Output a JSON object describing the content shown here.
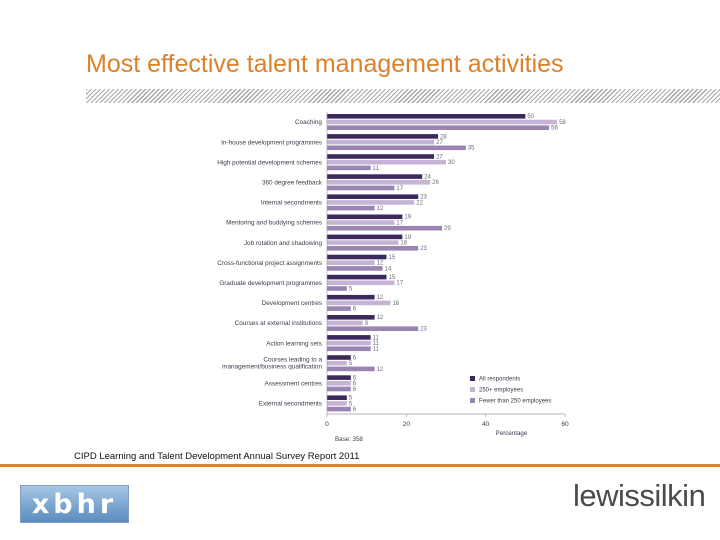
{
  "slide": {
    "title": "Most effective talent management activities",
    "source": "CIPD Learning and Talent Development Annual Survey Report 2011"
  },
  "logos": {
    "left": "xbhr",
    "right": "lewissilkin"
  },
  "colors": {
    "title": "#d9822b",
    "rule": "#d9822b",
    "series_all": "#3d2a5c",
    "series_large": "#c6b4d6",
    "series_small": "#9a84b2"
  },
  "chart_data": {
    "type": "bar",
    "orientation": "horizontal",
    "categories": [
      "Coaching",
      "In-house development programmes",
      "High potential development schemes",
      "360 degree feedback",
      "Internal secondments",
      "Mentoring and buddying schemes",
      "Job rotation and shadowing",
      "Cross-functional project assignments",
      "Graduate development programmes",
      "Development centres",
      "Courses at external institutions",
      "Action learning sets",
      "Courses leading to a management/business qualification",
      "Assessment centres",
      "External secondments"
    ],
    "series": [
      {
        "name": "All respondents",
        "values": [
          50,
          28,
          27,
          24,
          23,
          19,
          19,
          15,
          15,
          12,
          12,
          11,
          6,
          6,
          5
        ]
      },
      {
        "name": "250+ employees",
        "values": [
          58,
          27,
          30,
          26,
          22,
          17,
          18,
          12,
          17,
          16,
          9,
          11,
          5,
          6,
          5
        ]
      },
      {
        "name": "Fewer than 250 employees",
        "values": [
          56,
          35,
          11,
          17,
          12,
          29,
          23,
          14,
          5,
          6,
          23,
          11,
          12,
          6,
          6
        ]
      }
    ],
    "x_ticks": [
      "0",
      "20",
      "40",
      "60"
    ],
    "xlim": [
      0,
      60
    ],
    "xlabel": "Percentage",
    "base_note": "Base: 358",
    "legend_position": "bottom-right"
  }
}
